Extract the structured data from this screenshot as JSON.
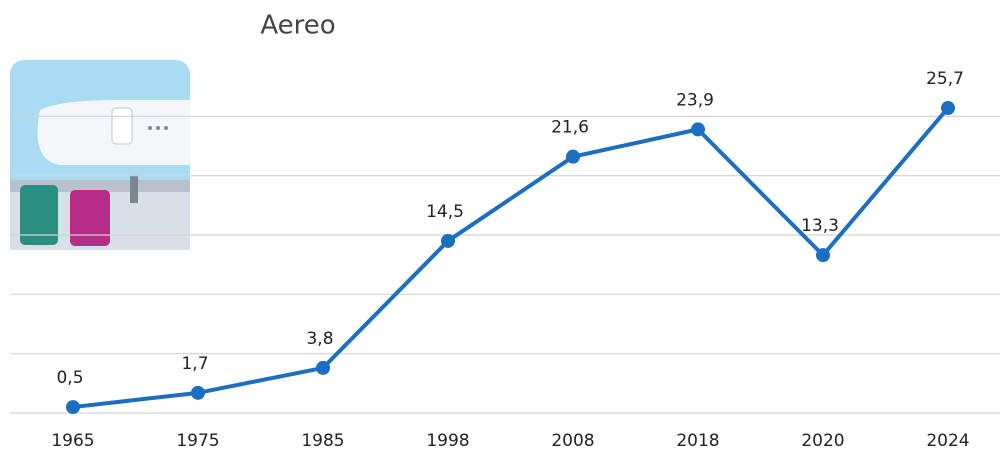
{
  "chart_data": {
    "type": "line",
    "title": "Aereo",
    "categories": [
      "1965",
      "1975",
      "1985",
      "1998",
      "2008",
      "2018",
      "2020",
      "2024"
    ],
    "values": [
      0.5,
      1.7,
      3.8,
      14.5,
      21.6,
      23.9,
      13.3,
      25.7
    ],
    "value_labels": [
      "0,5",
      "1,7",
      "3,8",
      "14,5",
      "21,6",
      "23,9",
      "13,3",
      "25,7"
    ],
    "color": "#1b6ec2",
    "ylim": [
      0,
      30
    ],
    "yticks": [
      0,
      5,
      10,
      15,
      20,
      25
    ],
    "grid": true
  }
}
